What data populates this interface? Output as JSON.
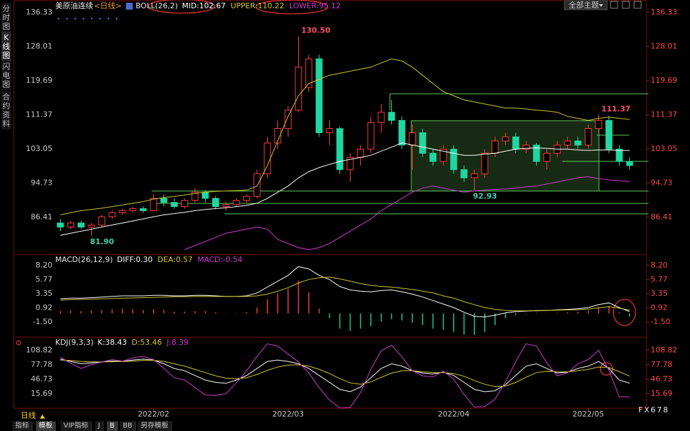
{
  "chart_data": [
    {
      "type": "candlestick",
      "title": "美原油连续",
      "period": "<日线>",
      "indicator": "BOLL(26,2)",
      "up_color": "#ff3b3b",
      "down_color": "#21d6a0",
      "ylim": [
        78,
        137.67
      ],
      "yticks": [
        136.33,
        128.01,
        119.69,
        111.37,
        103.05,
        94.73,
        86.41
      ],
      "xlim": [
        -0.5,
        56.5
      ],
      "xticks": [
        {
          "value": 9,
          "label": "2022/02"
        },
        {
          "value": 22,
          "label": "2022/03"
        },
        {
          "value": 38,
          "label": "2022/04"
        },
        {
          "value": 51,
          "label": "2022/05"
        }
      ],
      "open": [
        85,
        84,
        85,
        84,
        84.5,
        86.5,
        87.5,
        88,
        88.5,
        88,
        91,
        90,
        89,
        90.5,
        92.5,
        91,
        89,
        89.5,
        90.5,
        91.5,
        97,
        104.5,
        108,
        112.5,
        118,
        125,
        107,
        108,
        98,
        101,
        103,
        109.5,
        112,
        110,
        104,
        107,
        102,
        100,
        103,
        98,
        96,
        97,
        102,
        105,
        106,
        103,
        104,
        100,
        102,
        104,
        105,
        104,
        108,
        110,
        103,
        100
      ],
      "high": [
        86,
        85.5,
        85.5,
        85,
        87,
        88,
        88.5,
        89,
        89,
        92,
        92,
        91,
        91,
        93.5,
        93,
        91.5,
        90,
        91,
        92,
        98,
        106,
        110,
        113.5,
        130.5,
        126,
        126,
        110,
        108.5,
        102,
        104,
        111,
        114,
        115,
        111,
        109,
        108,
        103,
        104,
        104,
        99,
        98,
        103,
        106,
        107,
        107,
        105,
        104.5,
        103,
        105,
        106,
        106,
        109,
        111.37,
        111,
        104,
        101
      ],
      "low": [
        83,
        83.5,
        83.5,
        81.9,
        84,
        86,
        87,
        87.5,
        87.5,
        88,
        89,
        88.5,
        88.5,
        90,
        90,
        88.5,
        88,
        89,
        90,
        91,
        96,
        103,
        106,
        112,
        117,
        106,
        104,
        97,
        95,
        99,
        102,
        107,
        109,
        103,
        98,
        101,
        99,
        99,
        97,
        95,
        92.93,
        96,
        101,
        104,
        102,
        102,
        99,
        98,
        101,
        103,
        103,
        103,
        107,
        102,
        99,
        98
      ],
      "close": [
        84,
        85,
        84,
        84.5,
        86.5,
        87.5,
        88,
        88.5,
        88,
        91,
        90,
        89,
        90.5,
        92.5,
        91,
        89,
        89.5,
        90.5,
        91.5,
        97,
        104.5,
        108,
        112.5,
        123,
        125,
        107,
        108,
        98,
        101,
        103,
        109.5,
        112,
        110,
        104,
        107,
        102,
        100,
        103,
        98,
        96,
        97,
        102,
        105,
        106,
        103,
        104,
        100,
        102,
        104,
        105,
        104,
        108,
        110,
        103,
        100,
        99
      ],
      "series": [
        {
          "name": "MID:102.67",
          "color": "#ffffff",
          "values": [
            82,
            82.5,
            83,
            83.5,
            84,
            84.5,
            85,
            85.5,
            86,
            86.5,
            87,
            87.3,
            87.6,
            88,
            88.3,
            88.5,
            88.7,
            89,
            89.3,
            89.8,
            91,
            92.5,
            94,
            96,
            97.5,
            98.5,
            99.3,
            100,
            100.5,
            101,
            101.5,
            102.5,
            103.5,
            104.5,
            104,
            103.5,
            103,
            102.5,
            102,
            101.5,
            101.5,
            101.8,
            102,
            102.5,
            103,
            103.2,
            103.3,
            103.2,
            103,
            103,
            102.8,
            102.7,
            102.8,
            102.8,
            102.7,
            102.67
          ]
        },
        {
          "name": "UPPER:110.22",
          "color": "#d4c72a",
          "values": [
            87,
            87.5,
            88,
            88.3,
            88.6,
            89,
            89.4,
            89.8,
            90.2,
            90.8,
            91.2,
            91.5,
            91.8,
            92.2,
            92.5,
            92.7,
            92.8,
            92.9,
            93,
            94,
            99,
            105,
            111,
            116,
            119,
            120,
            121,
            121.5,
            122,
            122.5,
            123,
            124,
            125,
            124.5,
            123,
            121,
            119,
            117,
            116,
            115,
            114.5,
            114,
            113.5,
            113,
            113,
            112.8,
            112.5,
            112.3,
            112,
            111,
            110.5,
            110,
            110.5,
            110.8,
            110.5,
            110.22
          ]
        },
        {
          "name": "LOWER:95.12",
          "color": "#d23ad2",
          "values": [
            null,
            null,
            null,
            null,
            null,
            null,
            null,
            null,
            null,
            null,
            null,
            null,
            78.5,
            79.5,
            80.5,
            81.5,
            82.5,
            83,
            83.5,
            84,
            83.5,
            81,
            80,
            79,
            78.5,
            79,
            80,
            81.5,
            83,
            84.5,
            86,
            88,
            89.5,
            91,
            92.5,
            93.5,
            94,
            93.5,
            93,
            92.5,
            92.8,
            93,
            93.2,
            93.3,
            93.5,
            93.8,
            94,
            94.5,
            95,
            95.5,
            96,
            96.3,
            95.8,
            95.5,
            95.3,
            95.12
          ]
        }
      ],
      "annotations": [
        {
          "value": 130.5,
          "label": "130.50",
          "color": "#ff4d6a"
        },
        {
          "value": 81.9,
          "label": "81.90",
          "color": "#3fd0b0"
        },
        {
          "value": 92.93,
          "label": "92.93",
          "color": "#3fd0b0"
        },
        {
          "value": 111.37,
          "label": "111.37",
          "color": "#ff4d6a"
        }
      ]
    },
    {
      "type": "line",
      "indicator": "MACD(26,12,9)",
      "ylim": [
        -3.83,
        9.72
      ],
      "yticks": [
        {
          "value": 8.2,
          "label": "8.20"
        },
        5.77,
        3.35,
        0.92,
        {
          "value": -1.5,
          "label": "-1.50"
        }
      ],
      "series": [
        {
          "name": "DIFF:0.30",
          "color": "#ffffff",
          "kind": "line",
          "values": [
            2.5,
            2.6,
            2.6,
            2.7,
            2.8,
            2.9,
            3,
            3,
            3,
            3.1,
            3.1,
            3,
            3,
            3.1,
            3.1,
            3,
            2.9,
            2.9,
            3,
            3.5,
            4.5,
            5.5,
            6.5,
            8,
            7.6,
            6.5,
            5.8,
            4.6,
            4,
            3.8,
            3.7,
            3.9,
            4,
            3.7,
            3.3,
            2.8,
            2.2,
            1.6,
            1,
            0.2,
            -0.5,
            -0.6,
            -0.3,
            0.1,
            0.3,
            0.4,
            0.5,
            0.5,
            0.6,
            0.7,
            0.8,
            1,
            1.5,
            1.8,
            1,
            0.3
          ]
        },
        {
          "name": "DEA:0.57",
          "color": "#d4c72a",
          "kind": "line",
          "values": [
            2.3,
            2.35,
            2.4,
            2.45,
            2.5,
            2.55,
            2.6,
            2.65,
            2.7,
            2.75,
            2.8,
            2.85,
            2.85,
            2.9,
            2.9,
            2.9,
            2.9,
            2.9,
            2.9,
            3,
            3.3,
            3.8,
            4.4,
            5.2,
            5.8,
            6.1,
            6.2,
            5.9,
            5.5,
            5.1,
            4.8,
            4.6,
            4.5,
            4.3,
            4.1,
            3.8,
            3.5,
            3,
            2.6,
            2,
            1.5,
            1,
            0.7,
            0.5,
            0.45,
            0.45,
            0.45,
            0.5,
            0.55,
            0.6,
            0.65,
            0.75,
            0.95,
            1.15,
            0.9,
            0.57
          ]
        },
        {
          "name": "MACD:-0.54",
          "color": "#d23ad2",
          "kind": "bar",
          "up_color": "#ff3b3b",
          "down_color": "#21c896",
          "values": [
            0.4,
            0.5,
            0.4,
            0.5,
            0.6,
            0.7,
            0.8,
            0.7,
            0.6,
            0.7,
            0.6,
            0.3,
            0.3,
            0.4,
            0.4,
            0.2,
            0,
            0,
            0.2,
            1,
            2.4,
            3.4,
            4.2,
            5.6,
            3.6,
            0.8,
            -0.8,
            -2.6,
            -3,
            -2.6,
            -2.2,
            -1.4,
            -1,
            -1.2,
            -1.6,
            -2,
            -2.6,
            -2.8,
            -3.2,
            -3.6,
            -3.7,
            -3.2,
            -2,
            -0.8,
            -0.3,
            -0.1,
            0.1,
            0,
            0.1,
            0.2,
            0.3,
            0.5,
            1.1,
            1.3,
            0.2,
            -0.54
          ]
        }
      ]
    },
    {
      "type": "line",
      "indicator": "KDJ(9,3,3)",
      "ylim": [
        -15.6,
        135.6
      ],
      "yticks": [
        108.82,
        77.78,
        46.73,
        15.69
      ],
      "series": [
        {
          "name": "K:38.43",
          "color": "#ffffff",
          "kind": "line",
          "values": [
            90,
            85,
            80,
            82,
            84,
            86,
            85,
            88,
            90,
            88,
            80,
            70,
            65,
            55,
            45,
            40,
            38,
            45,
            55,
            70,
            85,
            88,
            85,
            80,
            70,
            55,
            40,
            25,
            20,
            30,
            50,
            70,
            80,
            75,
            65,
            60,
            58,
            62,
            55,
            40,
            25,
            20,
            22,
            35,
            55,
            75,
            80,
            70,
            60,
            62,
            70,
            75,
            85,
            70,
            45,
            38.43
          ]
        },
        {
          "name": "D:53.46",
          "color": "#d4c72a",
          "kind": "line",
          "values": [
            88,
            87,
            85,
            84,
            84,
            84.5,
            84.7,
            85.7,
            87,
            87.4,
            85,
            80,
            75,
            68,
            61,
            54,
            49,
            48,
            50,
            57,
            66,
            73,
            77,
            78,
            75,
            68,
            59,
            48,
            39,
            36,
            41,
            51,
            60,
            65,
            65,
            63,
            61,
            61,
            59,
            53,
            44,
            36,
            31,
            32,
            40,
            51,
            61,
            64,
            63,
            62.7,
            65,
            68,
            73,
            72,
            63,
            53.46
          ]
        },
        {
          "name": "J:8.39",
          "color": "#d23ad2",
          "kind": "line",
          "values": [
            94,
            81,
            70,
            78,
            84,
            89,
            85.6,
            92.6,
            96,
            89,
            70,
            50,
            45,
            29,
            13,
            12,
            16,
            39,
            65,
            96,
            123,
            118,
            101,
            84,
            60,
            29,
            2,
            -15,
            -14,
            18,
            68,
            108,
            120,
            95,
            65,
            54,
            52,
            64,
            47,
            14,
            -13,
            -12,
            4,
            41,
            85,
            123,
            118,
            82,
            54,
            60.6,
            80,
            89,
            109,
            66,
            9,
            8.39
          ]
        }
      ]
    }
  ],
  "ui": {
    "sidebar": [
      "分时图",
      "K线图",
      "闪电图",
      "合约资料"
    ],
    "theme_menu": "全部主题",
    "period_button": "日线",
    "tabs": [
      "指标",
      "模板",
      "VIP指标",
      "J",
      "B",
      "BB",
      "另存模板"
    ],
    "watermark": "FX678"
  }
}
